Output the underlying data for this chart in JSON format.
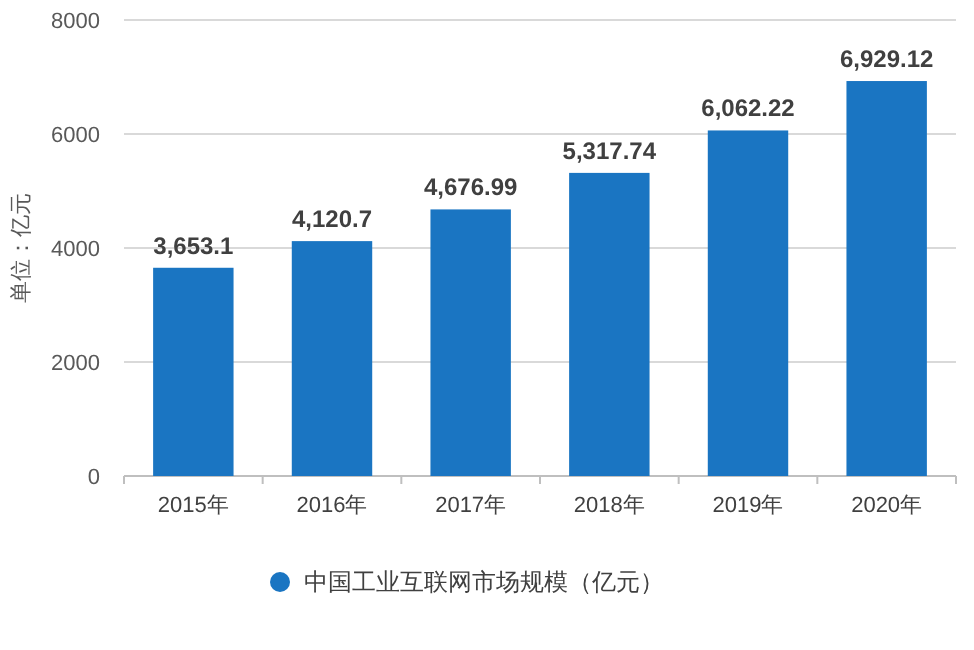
{
  "chart_data": {
    "type": "bar",
    "ylabel": "单位：亿元",
    "categories": [
      "2015年",
      "2016年",
      "2017年",
      "2018年",
      "2019年",
      "2020年"
    ],
    "series": [
      {
        "name": "中国工业互联网市场规模（亿元）",
        "color": "#1a75c2",
        "values": [
          3653.1,
          4120.7,
          4676.99,
          5317.74,
          6062.22,
          6929.12
        ],
        "value_labels": [
          "3,653.1",
          "4,120.7",
          "4,676.99",
          "5,317.74",
          "6,062.22",
          "6,929.12"
        ]
      }
    ],
    "ylim": [
      0,
      8000
    ],
    "yticks": [
      0,
      2000,
      4000,
      6000,
      8000
    ],
    "grid": "y",
    "legend": "bottom"
  }
}
